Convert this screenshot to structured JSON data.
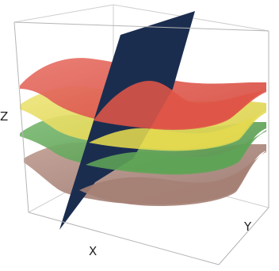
{
  "axes": {
    "x_label": "X",
    "y_label": "Y",
    "z_label": "Z"
  },
  "colors": {
    "box_edge": "#b5b5b5",
    "box_edge_back": "#cfcfcf",
    "surface_red": "#e05a4e",
    "surface_yellow": "#e7de57",
    "surface_green": "#62a85a",
    "surface_brown": "#a98478",
    "cut_plane": "#1b2d4f"
  },
  "surfaces": [
    {
      "name": "red-surface",
      "color_key": "surface_red"
    },
    {
      "name": "yellow-surface",
      "color_key": "surface_yellow"
    },
    {
      "name": "green-surface",
      "color_key": "surface_green"
    },
    {
      "name": "brown-surface",
      "color_key": "surface_brown"
    }
  ]
}
